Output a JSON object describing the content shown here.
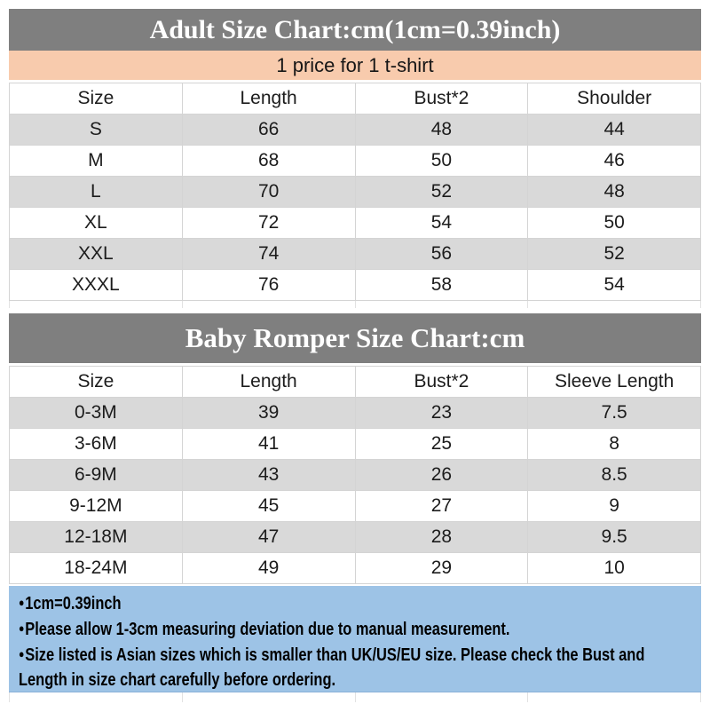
{
  "colors": {
    "header_bar_bg": "#7f7f7f",
    "title_text": "#ffffff",
    "price_bar_bg": "#f8cbad",
    "alt_row_bg": "#d9d9d9",
    "row_bg": "#ffffff",
    "grid_border": "#d4d4d4",
    "cell_text": "#1c1c1c",
    "notes_bg": "#9dc3e6",
    "notes_text": "#000000"
  },
  "chart_data": [
    {
      "type": "table",
      "title": "Adult Size Chart:cm(1cm=0.39inch)",
      "subtitle": "1 price for 1 t-shirt",
      "columns": [
        "Size",
        "Length",
        "Bust*2",
        "Shoulder"
      ],
      "rows": [
        [
          "S",
          66,
          48,
          44
        ],
        [
          "M",
          68,
          50,
          46
        ],
        [
          "L",
          70,
          52,
          48
        ],
        [
          "XL",
          72,
          54,
          50
        ],
        [
          "XXL",
          74,
          56,
          52
        ],
        [
          "XXXL",
          76,
          58,
          54
        ]
      ]
    },
    {
      "type": "table",
      "title": "Baby Romper Size Chart:cm",
      "columns": [
        "Size",
        "Length",
        "Bust*2",
        "Sleeve Length"
      ],
      "rows": [
        [
          "0-3M",
          39,
          23,
          7.5
        ],
        [
          "3-6M",
          41,
          25,
          8
        ],
        [
          "6-9M",
          43,
          26,
          8.5
        ],
        [
          "9-12M",
          45,
          27,
          9
        ],
        [
          "12-18M",
          47,
          28,
          9.5
        ],
        [
          "18-24M",
          49,
          29,
          10
        ]
      ]
    }
  ],
  "notes": {
    "bullet": "●",
    "items": [
      "1cm=0.39inch",
      "Please allow 1-3cm measuring deviation due to manual measurement.",
      "Size listed is Asian sizes which is smaller than UK/US/EU size. Please check the Bust and Length in size chart carefully before ordering."
    ]
  }
}
